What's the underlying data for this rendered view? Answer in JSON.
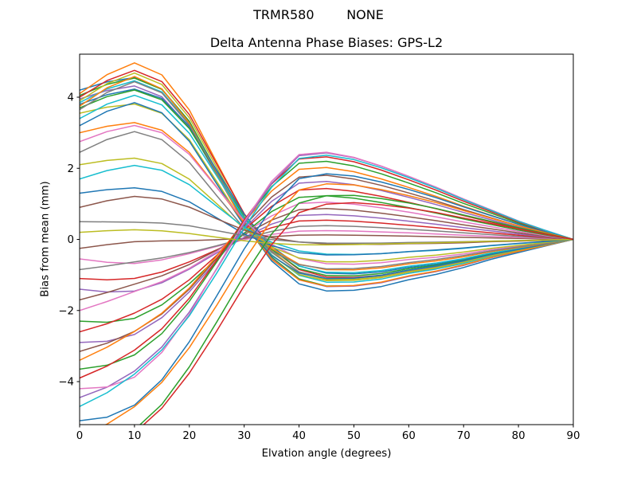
{
  "header": {
    "title": "TRMR580        NONE",
    "subtitle": "Delta Antenna Phase Biases: GPS-L2"
  },
  "chart_data": {
    "type": "line",
    "title": "TRMR580        NONE",
    "subtitle": "Delta Antenna Phase Biases: GPS-L2",
    "xlabel": "Elvation angle (degrees)",
    "ylabel": "Bias from mean (mm)",
    "xlim": [
      0,
      90
    ],
    "ylim": [
      -5.21,
      5.21
    ],
    "xticks": [
      0,
      10,
      20,
      30,
      40,
      50,
      60,
      70,
      80,
      90
    ],
    "yticks": [
      -4,
      -2,
      0,
      2,
      4
    ],
    "grid": false,
    "legend": null,
    "line_width": 1.5,
    "spine_color": "#000000",
    "colors": [
      "#1f77b4",
      "#ff7f0e",
      "#2ca02c",
      "#d62728",
      "#9467bd",
      "#8c564b",
      "#e377c2",
      "#7f7f7f",
      "#bcbd22",
      "#17becf"
    ],
    "x_nodes": [
      0,
      5,
      10,
      15,
      20,
      25,
      30,
      35,
      40,
      45,
      50,
      55,
      60,
      65,
      70,
      75,
      80,
      85,
      90
    ],
    "value_rule": "y[k] = a * bases[family][k] + b * bases.mid_bump[k] + c * bases.low_bump[k]; all curves equal 0 at elevation 90",
    "bases": {
      "pos": [
        1.0,
        1.1,
        1.16,
        1.08,
        0.85,
        0.5,
        0.15,
        -0.1,
        -0.25,
        -0.3,
        -0.3,
        -0.28,
        -0.24,
        -0.21,
        -0.17,
        -0.12,
        -0.08,
        -0.04,
        0.0
      ],
      "neg": [
        1.0,
        0.97,
        0.9,
        0.79,
        0.63,
        0.44,
        0.24,
        0.06,
        -0.08,
        -0.12,
        -0.13,
        -0.125,
        -0.115,
        -0.1,
        -0.08,
        -0.06,
        -0.04,
        -0.02,
        0.0
      ],
      "mid_bump": [
        0.0,
        0.05,
        0.1,
        0.2,
        0.35,
        0.55,
        0.75,
        0.92,
        1.0,
        0.95,
        0.86,
        0.75,
        0.63,
        0.51,
        0.39,
        0.28,
        0.17,
        0.08,
        0.0
      ],
      "low_bump": [
        0.0,
        0.6,
        1.0,
        0.9,
        0.6,
        0.3,
        0.1,
        0.0,
        0.0,
        0.0,
        0.0,
        0.0,
        0.0,
        0.0,
        0.0,
        0.0,
        0.0,
        0.0,
        0.0
      ]
    },
    "series": [
      {
        "family": "pos",
        "a": 4.2,
        "b": -0.2,
        "c": -0.3
      },
      {
        "family": "pos",
        "a": 4.1,
        "b": 0.1,
        "c": 0.2
      },
      {
        "family": "pos",
        "a": 4.05,
        "b": -0.1,
        "c": -0.15
      },
      {
        "family": "pos",
        "a": 4.0,
        "b": 0.15,
        "c": 0.1
      },
      {
        "family": "pos",
        "a": 3.95,
        "b": -0.15,
        "c": -0.25
      },
      {
        "family": "neg",
        "a": -0.25,
        "b": 0.1,
        "c": 0.15
      },
      {
        "family": "neg",
        "a": -0.55,
        "b": 0.19,
        "c": -0.2
      },
      {
        "family": "neg",
        "a": -0.85,
        "b": 0.3,
        "c": 0.1
      },
      {
        "family": "pos",
        "a": 3.9,
        "b": 0.05,
        "c": 0.15
      },
      {
        "family": "pos",
        "a": 3.85,
        "b": -0.05,
        "c": 0.0
      },
      {
        "family": "pos",
        "a": 3.8,
        "b": 0.2,
        "c": -0.2
      },
      {
        "family": "pos",
        "a": 3.75,
        "b": -0.2,
        "c": 0.25
      },
      {
        "family": "pos",
        "a": 3.7,
        "b": 0.1,
        "c": -0.1
      },
      {
        "family": "neg",
        "a": -1.1,
        "b": 0.43,
        "c": -0.15
      },
      {
        "family": "neg",
        "a": -1.4,
        "b": 0.56,
        "c": -0.25
      },
      {
        "family": "neg",
        "a": -1.7,
        "b": 0.7,
        "c": 0.2
      },
      {
        "family": "neg",
        "a": -2.0,
        "b": 0.85,
        "c": 0.25
      },
      {
        "family": "pos",
        "a": 3.65,
        "b": 0.0,
        "c": 0.2
      },
      {
        "family": "pos",
        "a": 3.55,
        "b": -0.1,
        "c": -0.3
      },
      {
        "family": "pos",
        "a": 3.4,
        "b": 0.1,
        "c": 0.1
      },
      {
        "family": "pos",
        "a": 3.2,
        "b": -0.15,
        "c": 0.15
      },
      {
        "family": "pos",
        "a": 3.0,
        "b": 0.05,
        "c": -0.2
      },
      {
        "family": "neg",
        "a": -2.3,
        "b": 1.0,
        "c": -0.25
      },
      {
        "family": "neg",
        "a": -2.6,
        "b": 1.18,
        "c": 0.15
      },
      {
        "family": "neg",
        "a": -2.9,
        "b": 1.35,
        "c": -0.2
      },
      {
        "family": "neg",
        "a": -3.15,
        "b": 1.5,
        "c": 0.1
      },
      {
        "family": "pos",
        "a": 2.75,
        "b": 0.15,
        "c": 0.0
      },
      {
        "family": "pos",
        "a": 2.45,
        "b": -0.1,
        "c": 0.2
      },
      {
        "family": "pos",
        "a": 2.1,
        "b": 0.0,
        "c": -0.15
      },
      {
        "family": "pos",
        "a": 1.7,
        "b": 0.1,
        "c": 0.1
      },
      {
        "family": "pos",
        "a": 1.3,
        "b": -0.05,
        "c": -0.05
      },
      {
        "family": "neg",
        "a": -3.4,
        "b": 1.7,
        "c": 0.3
      },
      {
        "family": "neg",
        "a": -3.65,
        "b": 1.85,
        "c": -0.15
      },
      {
        "family": "neg",
        "a": -3.9,
        "b": 1.95,
        "c": 0.2
      },
      {
        "family": "neg",
        "a": -4.45,
        "b": 2.0,
        "c": 0.1
      },
      {
        "family": "pos",
        "a": 0.9,
        "b": 0.15,
        "c": 0.15
      },
      {
        "family": "neg",
        "a": -4.2,
        "b": 2.05,
        "c": -0.3
      },
      {
        "family": "pos",
        "a": 0.5,
        "b": 0.05,
        "c": -0.1
      },
      {
        "family": "pos",
        "a": 0.2,
        "b": -0.1,
        "c": 0.05
      },
      {
        "family": "neg",
        "a": -4.7,
        "b": 1.9,
        "c": 0.25
      },
      {
        "family": "neg",
        "a": -5.1,
        "b": 1.3,
        "c": -0.2
      },
      {
        "family": "neg",
        "a": -5.5,
        "b": 0.95,
        "c": 0.15
      },
      {
        "family": "neg",
        "a": -5.9,
        "b": 0.55,
        "c": -0.1
      },
      {
        "family": "neg",
        "a": -6.3,
        "b": 0.25,
        "c": 0.2
      }
    ]
  }
}
